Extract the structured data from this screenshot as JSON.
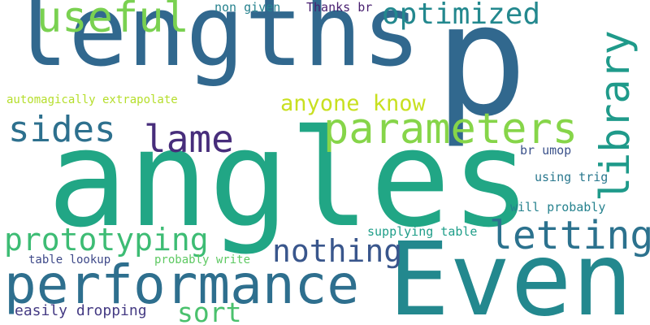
{
  "words": [
    {
      "text": "lengths",
      "color": "#31688e"
    },
    {
      "text": "p",
      "color": "#31688e"
    },
    {
      "text": "angles",
      "color": "#21a685"
    },
    {
      "text": "Even",
      "color": "#23888e"
    },
    {
      "text": "performance",
      "color": "#2e6f8e"
    },
    {
      "text": "useful",
      "color": "#7ad151"
    },
    {
      "text": "optimized",
      "color": "#23888e"
    },
    {
      "text": "library",
      "color": "#1f9a8a"
    },
    {
      "text": "parameters",
      "color": "#86d549"
    },
    {
      "text": "lame",
      "color": "#472d7b"
    },
    {
      "text": "sides",
      "color": "#2d708e"
    },
    {
      "text": "letting",
      "color": "#2c728e"
    },
    {
      "text": "prototyping",
      "color": "#3dbc74"
    },
    {
      "text": "nothing",
      "color": "#39568c"
    },
    {
      "text": "anyone know",
      "color": "#c8e020"
    },
    {
      "text": "sort",
      "color": "#4ac16d"
    },
    {
      "text": "non given",
      "color": "#26828e"
    },
    {
      "text": "Thanks br",
      "color": "#481f70"
    },
    {
      "text": "automagically extrapolate",
      "color": "#b5de2b"
    },
    {
      "text": "br umop",
      "color": "#3b528b"
    },
    {
      "text": "using trig",
      "color": "#2a788e"
    },
    {
      "text": "will probably",
      "color": "#26828e"
    },
    {
      "text": "supplying table",
      "color": "#1f9e89"
    },
    {
      "text": "table lookup",
      "color": "#3e4989"
    },
    {
      "text": "probably write",
      "color": "#5ec962"
    },
    {
      "text": "easily dropping",
      "color": "#443a83"
    }
  ]
}
